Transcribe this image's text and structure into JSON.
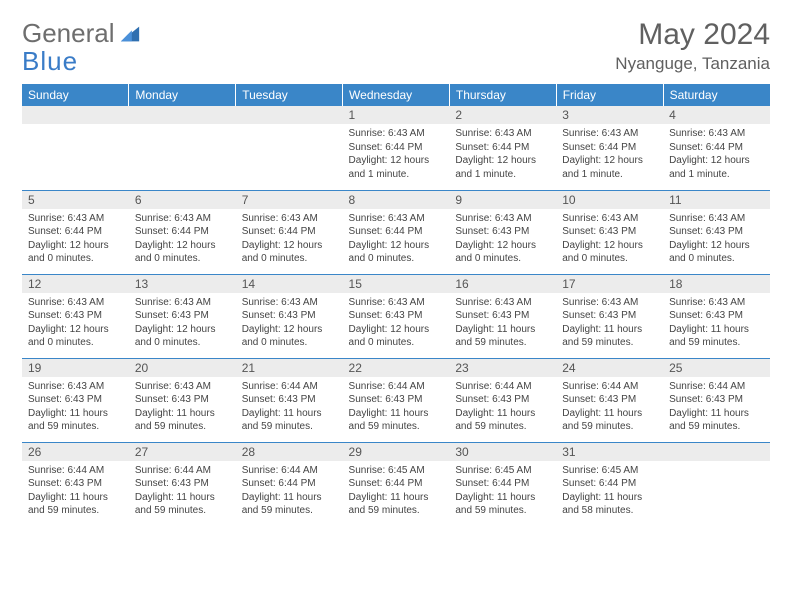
{
  "brand": {
    "name_a": "General",
    "name_b": "Blue"
  },
  "title": "May 2024",
  "location": "Nyanguge, Tanzania",
  "colors": {
    "header_bg": "#3a86c8",
    "header_fg": "#ffffff",
    "daynum_bg": "#ececec",
    "row_border": "#3a86c8",
    "text": "#444444",
    "title_color": "#606060"
  },
  "weekdays": [
    "Sunday",
    "Monday",
    "Tuesday",
    "Wednesday",
    "Thursday",
    "Friday",
    "Saturday"
  ],
  "weeks": [
    [
      {
        "day": "",
        "sunrise": "",
        "sunset": "",
        "daylight": ""
      },
      {
        "day": "",
        "sunrise": "",
        "sunset": "",
        "daylight": ""
      },
      {
        "day": "",
        "sunrise": "",
        "sunset": "",
        "daylight": ""
      },
      {
        "day": "1",
        "sunrise": "Sunrise: 6:43 AM",
        "sunset": "Sunset: 6:44 PM",
        "daylight": "Daylight: 12 hours and 1 minute."
      },
      {
        "day": "2",
        "sunrise": "Sunrise: 6:43 AM",
        "sunset": "Sunset: 6:44 PM",
        "daylight": "Daylight: 12 hours and 1 minute."
      },
      {
        "day": "3",
        "sunrise": "Sunrise: 6:43 AM",
        "sunset": "Sunset: 6:44 PM",
        "daylight": "Daylight: 12 hours and 1 minute."
      },
      {
        "day": "4",
        "sunrise": "Sunrise: 6:43 AM",
        "sunset": "Sunset: 6:44 PM",
        "daylight": "Daylight: 12 hours and 1 minute."
      }
    ],
    [
      {
        "day": "5",
        "sunrise": "Sunrise: 6:43 AM",
        "sunset": "Sunset: 6:44 PM",
        "daylight": "Daylight: 12 hours and 0 minutes."
      },
      {
        "day": "6",
        "sunrise": "Sunrise: 6:43 AM",
        "sunset": "Sunset: 6:44 PM",
        "daylight": "Daylight: 12 hours and 0 minutes."
      },
      {
        "day": "7",
        "sunrise": "Sunrise: 6:43 AM",
        "sunset": "Sunset: 6:44 PM",
        "daylight": "Daylight: 12 hours and 0 minutes."
      },
      {
        "day": "8",
        "sunrise": "Sunrise: 6:43 AM",
        "sunset": "Sunset: 6:44 PM",
        "daylight": "Daylight: 12 hours and 0 minutes."
      },
      {
        "day": "9",
        "sunrise": "Sunrise: 6:43 AM",
        "sunset": "Sunset: 6:43 PM",
        "daylight": "Daylight: 12 hours and 0 minutes."
      },
      {
        "day": "10",
        "sunrise": "Sunrise: 6:43 AM",
        "sunset": "Sunset: 6:43 PM",
        "daylight": "Daylight: 12 hours and 0 minutes."
      },
      {
        "day": "11",
        "sunrise": "Sunrise: 6:43 AM",
        "sunset": "Sunset: 6:43 PM",
        "daylight": "Daylight: 12 hours and 0 minutes."
      }
    ],
    [
      {
        "day": "12",
        "sunrise": "Sunrise: 6:43 AM",
        "sunset": "Sunset: 6:43 PM",
        "daylight": "Daylight: 12 hours and 0 minutes."
      },
      {
        "day": "13",
        "sunrise": "Sunrise: 6:43 AM",
        "sunset": "Sunset: 6:43 PM",
        "daylight": "Daylight: 12 hours and 0 minutes."
      },
      {
        "day": "14",
        "sunrise": "Sunrise: 6:43 AM",
        "sunset": "Sunset: 6:43 PM",
        "daylight": "Daylight: 12 hours and 0 minutes."
      },
      {
        "day": "15",
        "sunrise": "Sunrise: 6:43 AM",
        "sunset": "Sunset: 6:43 PM",
        "daylight": "Daylight: 12 hours and 0 minutes."
      },
      {
        "day": "16",
        "sunrise": "Sunrise: 6:43 AM",
        "sunset": "Sunset: 6:43 PM",
        "daylight": "Daylight: 11 hours and 59 minutes."
      },
      {
        "day": "17",
        "sunrise": "Sunrise: 6:43 AM",
        "sunset": "Sunset: 6:43 PM",
        "daylight": "Daylight: 11 hours and 59 minutes."
      },
      {
        "day": "18",
        "sunrise": "Sunrise: 6:43 AM",
        "sunset": "Sunset: 6:43 PM",
        "daylight": "Daylight: 11 hours and 59 minutes."
      }
    ],
    [
      {
        "day": "19",
        "sunrise": "Sunrise: 6:43 AM",
        "sunset": "Sunset: 6:43 PM",
        "daylight": "Daylight: 11 hours and 59 minutes."
      },
      {
        "day": "20",
        "sunrise": "Sunrise: 6:43 AM",
        "sunset": "Sunset: 6:43 PM",
        "daylight": "Daylight: 11 hours and 59 minutes."
      },
      {
        "day": "21",
        "sunrise": "Sunrise: 6:44 AM",
        "sunset": "Sunset: 6:43 PM",
        "daylight": "Daylight: 11 hours and 59 minutes."
      },
      {
        "day": "22",
        "sunrise": "Sunrise: 6:44 AM",
        "sunset": "Sunset: 6:43 PM",
        "daylight": "Daylight: 11 hours and 59 minutes."
      },
      {
        "day": "23",
        "sunrise": "Sunrise: 6:44 AM",
        "sunset": "Sunset: 6:43 PM",
        "daylight": "Daylight: 11 hours and 59 minutes."
      },
      {
        "day": "24",
        "sunrise": "Sunrise: 6:44 AM",
        "sunset": "Sunset: 6:43 PM",
        "daylight": "Daylight: 11 hours and 59 minutes."
      },
      {
        "day": "25",
        "sunrise": "Sunrise: 6:44 AM",
        "sunset": "Sunset: 6:43 PM",
        "daylight": "Daylight: 11 hours and 59 minutes."
      }
    ],
    [
      {
        "day": "26",
        "sunrise": "Sunrise: 6:44 AM",
        "sunset": "Sunset: 6:43 PM",
        "daylight": "Daylight: 11 hours and 59 minutes."
      },
      {
        "day": "27",
        "sunrise": "Sunrise: 6:44 AM",
        "sunset": "Sunset: 6:43 PM",
        "daylight": "Daylight: 11 hours and 59 minutes."
      },
      {
        "day": "28",
        "sunrise": "Sunrise: 6:44 AM",
        "sunset": "Sunset: 6:44 PM",
        "daylight": "Daylight: 11 hours and 59 minutes."
      },
      {
        "day": "29",
        "sunrise": "Sunrise: 6:45 AM",
        "sunset": "Sunset: 6:44 PM",
        "daylight": "Daylight: 11 hours and 59 minutes."
      },
      {
        "day": "30",
        "sunrise": "Sunrise: 6:45 AM",
        "sunset": "Sunset: 6:44 PM",
        "daylight": "Daylight: 11 hours and 59 minutes."
      },
      {
        "day": "31",
        "sunrise": "Sunrise: 6:45 AM",
        "sunset": "Sunset: 6:44 PM",
        "daylight": "Daylight: 11 hours and 58 minutes."
      },
      {
        "day": "",
        "sunrise": "",
        "sunset": "",
        "daylight": ""
      }
    ]
  ]
}
